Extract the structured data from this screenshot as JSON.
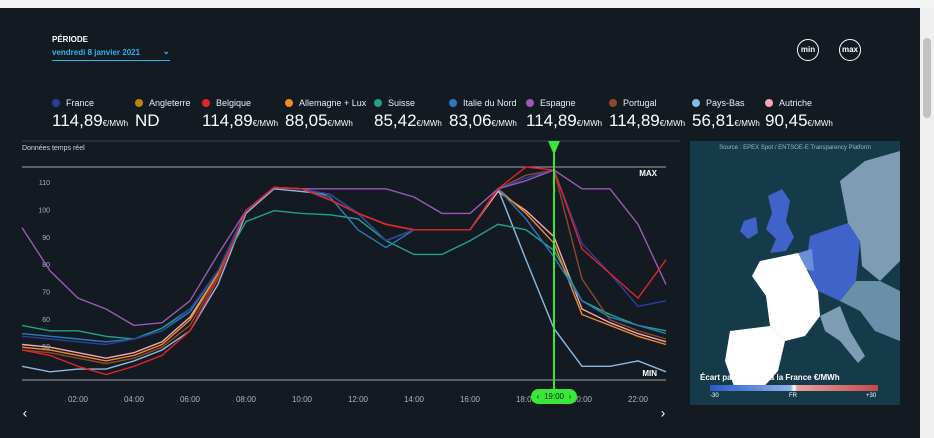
{
  "header": {
    "period_label": "PÉRIODE",
    "date": "vendredi 8 janvier 2021",
    "min_button": "min",
    "max_button": "max"
  },
  "chart_data": {
    "type": "line",
    "subtitle": "Données temps réel",
    "unit": "€/MWh",
    "x": [
      0,
      1,
      2,
      3,
      4,
      5,
      6,
      7,
      8,
      9,
      10,
      11,
      12,
      13,
      14,
      15,
      16,
      17,
      18,
      19,
      20,
      21,
      22,
      23
    ],
    "xlim": [
      0,
      23
    ],
    "xticks": [
      {
        "value": 2,
        "label": "02:00"
      },
      {
        "value": 4,
        "label": "04:00"
      },
      {
        "value": 6,
        "label": "06:00"
      },
      {
        "value": 8,
        "label": "08:00"
      },
      {
        "value": 10,
        "label": "10:00"
      },
      {
        "value": 12,
        "label": "12:00"
      },
      {
        "value": 14,
        "label": "14:00"
      },
      {
        "value": 16,
        "label": "16:00"
      },
      {
        "value": 18,
        "label": "18:00"
      },
      {
        "value": 20,
        "label": "20:00"
      },
      {
        "value": 22,
        "label": "22:00"
      }
    ],
    "ylim": [
      38,
      116
    ],
    "yticks": [
      50,
      60,
      70,
      80,
      90,
      100,
      110
    ],
    "grid": false,
    "max_label": "MAX",
    "min_label": "MIN",
    "cursor": {
      "value": 19,
      "label": "19:00"
    },
    "series": [
      {
        "name": "France",
        "color": "#2a3f9a",
        "cursor_label": "114,89",
        "values": [
          54,
          53,
          52,
          51,
          53,
          56,
          64,
          78,
          100,
          108.5,
          108,
          106,
          99,
          89,
          93,
          93,
          93,
          108,
          112,
          114.89,
          88,
          77,
          65,
          67
        ]
      },
      {
        "name": "Angleterre",
        "color": "#b8860b",
        "cursor_label": "ND",
        "values": [
          null,
          null,
          null,
          null,
          null,
          null,
          null,
          null,
          null,
          null,
          null,
          null,
          null,
          null,
          null,
          null,
          null,
          null,
          null,
          null,
          null,
          null,
          null,
          null
        ]
      },
      {
        "name": "Belgique",
        "color": "#e3232b",
        "cursor_label": "114,89",
        "values": [
          49,
          47,
          43,
          40,
          43,
          47,
          56,
          75,
          100,
          108.5,
          108,
          104,
          99,
          95,
          93,
          93,
          93,
          108,
          116,
          114.89,
          86,
          77,
          68,
          82
        ]
      },
      {
        "name": "Allemagne + Lux",
        "color": "#f08a24",
        "cursor_label": "88,05",
        "values": [
          50,
          49,
          47,
          45,
          47,
          51,
          60,
          77,
          100,
          108.5,
          108,
          104,
          99,
          95,
          93,
          93,
          93,
          108,
          99,
          88.05,
          62,
          58,
          54,
          51
        ]
      },
      {
        "name": "Suisse",
        "color": "#1fa38a",
        "cursor_label": "85,42",
        "values": [
          58,
          56,
          56,
          54,
          53,
          57,
          64,
          78,
          96,
          100,
          99,
          98.5,
          97,
          89,
          84,
          84,
          89,
          95,
          93,
          85.42,
          67,
          62,
          58,
          56
        ]
      },
      {
        "name": "Italie du Nord",
        "color": "#2a7ab8",
        "cursor_label": "83,06",
        "values": [
          55,
          54,
          53,
          52,
          53,
          56,
          63,
          78,
          100,
          108.5,
          108,
          105,
          93,
          86.5,
          93,
          93,
          93,
          108,
          97,
          83.06,
          67,
          61,
          58,
          55
        ]
      },
      {
        "name": "Espagne",
        "color": "#9b59b6",
        "cursor_label": "114,89",
        "values": [
          93.8,
          78,
          68,
          64,
          58,
          59,
          67,
          84,
          100,
          108.5,
          108,
          108,
          108,
          108,
          105,
          99,
          99,
          108,
          111,
          114.89,
          108,
          108,
          95,
          73
        ]
      },
      {
        "name": "Portugal",
        "color": "#8b4a2b",
        "cursor_label": "114,89",
        "values": [
          49,
          48,
          46,
          44,
          46,
          50,
          58,
          76,
          100,
          108.5,
          108,
          104,
          99,
          95,
          93,
          93,
          93,
          108,
          113,
          114.89,
          75,
          60,
          56,
          53
        ]
      },
      {
        "name": "Pays-Bas",
        "color": "#8bbbe4",
        "cursor_label": "56,81",
        "values": [
          43,
          41,
          42,
          42,
          45,
          49,
          56,
          73,
          99,
          108,
          107,
          106,
          99,
          89,
          93,
          93,
          93,
          108,
          82,
          56.81,
          43,
          43,
          45,
          41
        ]
      },
      {
        "name": "Autriche",
        "color": "#f4a6b4",
        "cursor_label": "90,45",
        "values": [
          51,
          50,
          48,
          46,
          48,
          52,
          61,
          77,
          100,
          108.5,
          108,
          104,
          99,
          95,
          93,
          93,
          93,
          107,
          100,
          90.45,
          64,
          59,
          55,
          52
        ]
      }
    ]
  },
  "map": {
    "source": "Source : EPEX Spot / ENTSOE-E Transparency Platform",
    "legend_title": "Écart part rapport à la France €/MWh",
    "scale_labels": [
      "-30",
      "FR",
      "+30"
    ]
  }
}
